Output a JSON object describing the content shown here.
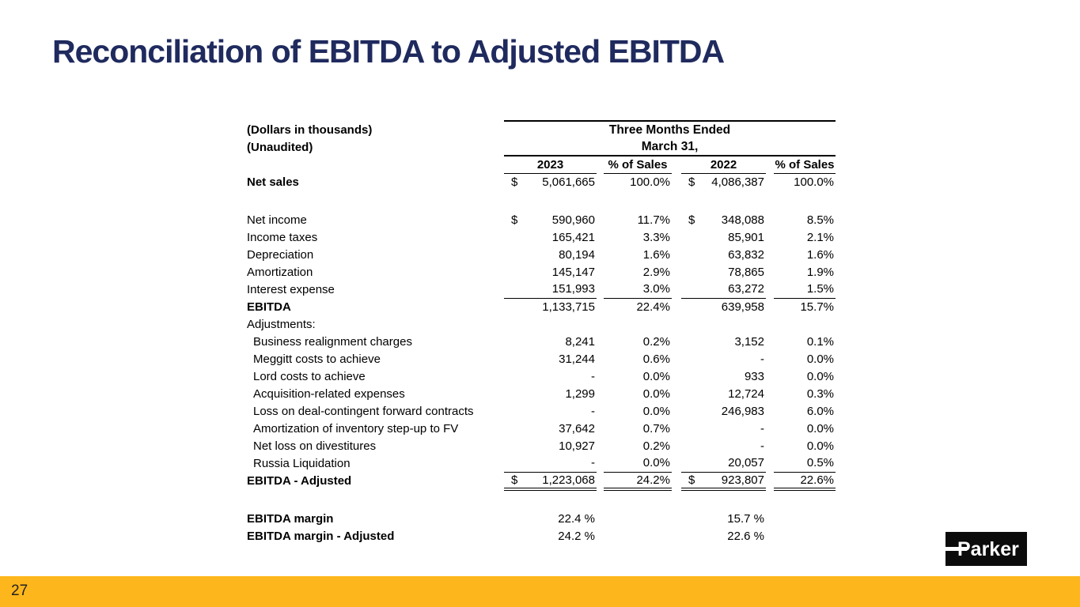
{
  "slide": {
    "title": "Reconciliation of EBITDA to Adjusted EBITDA",
    "footer": {
      "page_number": "27",
      "bar_color": "#FDB71C"
    },
    "logo": {
      "text": "Parker"
    },
    "colors": {
      "title": "#1F2A5E",
      "text": "#000000",
      "background": "#FFFFFF"
    }
  },
  "table": {
    "notes": [
      "(Dollars in thousands)",
      "(Unaudited)"
    ],
    "period_header": {
      "line1": "Three Months Ended",
      "line2": "March 31,"
    },
    "columns": [
      "2023",
      "% of Sales",
      "2022",
      "% of Sales"
    ],
    "rows": [
      {
        "label": "Net sales",
        "bold": true,
        "cells": [
          "$",
          "5,061,665",
          "100.0%",
          "$",
          "4,086,387",
          "100.0%"
        ],
        "rule": "none"
      },
      {
        "blank": true
      },
      {
        "label": "Net income",
        "cells": [
          "$",
          "590,960",
          "11.7%",
          "$",
          "348,088",
          "8.5%"
        ],
        "rule": "none"
      },
      {
        "label": "Income taxes",
        "cells": [
          "",
          "165,421",
          "3.3%",
          "",
          "85,901",
          "2.1%"
        ],
        "rule": "none"
      },
      {
        "label": "Depreciation",
        "cells": [
          "",
          "80,194",
          "1.6%",
          "",
          "63,832",
          "1.6%"
        ],
        "rule": "none"
      },
      {
        "label": "Amortization",
        "cells": [
          "",
          "145,147",
          "2.9%",
          "",
          "78,865",
          "1.9%"
        ],
        "rule": "none"
      },
      {
        "label": "Interest expense",
        "cells": [
          "",
          "151,993",
          "3.0%",
          "",
          "63,272",
          "1.5%"
        ],
        "rule": "single"
      },
      {
        "label": "EBITDA",
        "bold": true,
        "cells": [
          "",
          "1,133,715",
          "22.4%",
          "",
          "639,958",
          "15.7%"
        ],
        "rule": "none"
      },
      {
        "label": "Adjustments:",
        "cells": [
          "",
          "",
          "",
          "",
          "",
          ""
        ],
        "rule": "none"
      },
      {
        "label": "Business realignment charges",
        "indent": true,
        "cells": [
          "",
          "8,241",
          "0.2%",
          "",
          "3,152",
          "0.1%"
        ],
        "rule": "none"
      },
      {
        "label": "Meggitt costs to achieve",
        "indent": true,
        "cells": [
          "",
          "31,244",
          "0.6%",
          "",
          "-",
          "0.0%"
        ],
        "rule": "none"
      },
      {
        "label": "Lord costs to achieve",
        "indent": true,
        "cells": [
          "",
          "-",
          "0.0%",
          "",
          "933",
          "0.0%"
        ],
        "rule": "none"
      },
      {
        "label": "Acquisition-related expenses",
        "indent": true,
        "cells": [
          "",
          "1,299",
          "0.0%",
          "",
          "12,724",
          "0.3%"
        ],
        "rule": "none"
      },
      {
        "label": "Loss on deal-contingent forward contracts",
        "indent": true,
        "cells": [
          "",
          "-",
          "0.0%",
          "",
          "246,983",
          "6.0%"
        ],
        "rule": "none"
      },
      {
        "label": "Amortization of inventory step-up to FV",
        "indent": true,
        "cells": [
          "",
          "37,642",
          "0.7%",
          "",
          "-",
          "0.0%"
        ],
        "rule": "none"
      },
      {
        "label": "Net loss on divestitures",
        "indent": true,
        "cells": [
          "",
          "10,927",
          "0.2%",
          "",
          "-",
          "0.0%"
        ],
        "rule": "none"
      },
      {
        "label": "Russia Liquidation",
        "indent": true,
        "cells": [
          "",
          "-",
          "0.0%",
          "",
          "20,057",
          "0.5%"
        ],
        "rule": "single"
      },
      {
        "label": "EBITDA - Adjusted",
        "bold": true,
        "cells": [
          "$",
          "1,223,068",
          "24.2%",
          "$",
          "923,807",
          "22.6%"
        ],
        "rule": "double"
      },
      {
        "blank": true
      },
      {
        "label": "EBITDA margin",
        "bold": true,
        "cells": [
          "",
          "22.4 %",
          "",
          "",
          "15.7 %",
          ""
        ],
        "rule": "none"
      },
      {
        "label": "EBITDA margin - Adjusted",
        "bold": true,
        "cells": [
          "",
          "24.2 %",
          "",
          "",
          "22.6 %",
          ""
        ],
        "rule": "none"
      }
    ]
  }
}
